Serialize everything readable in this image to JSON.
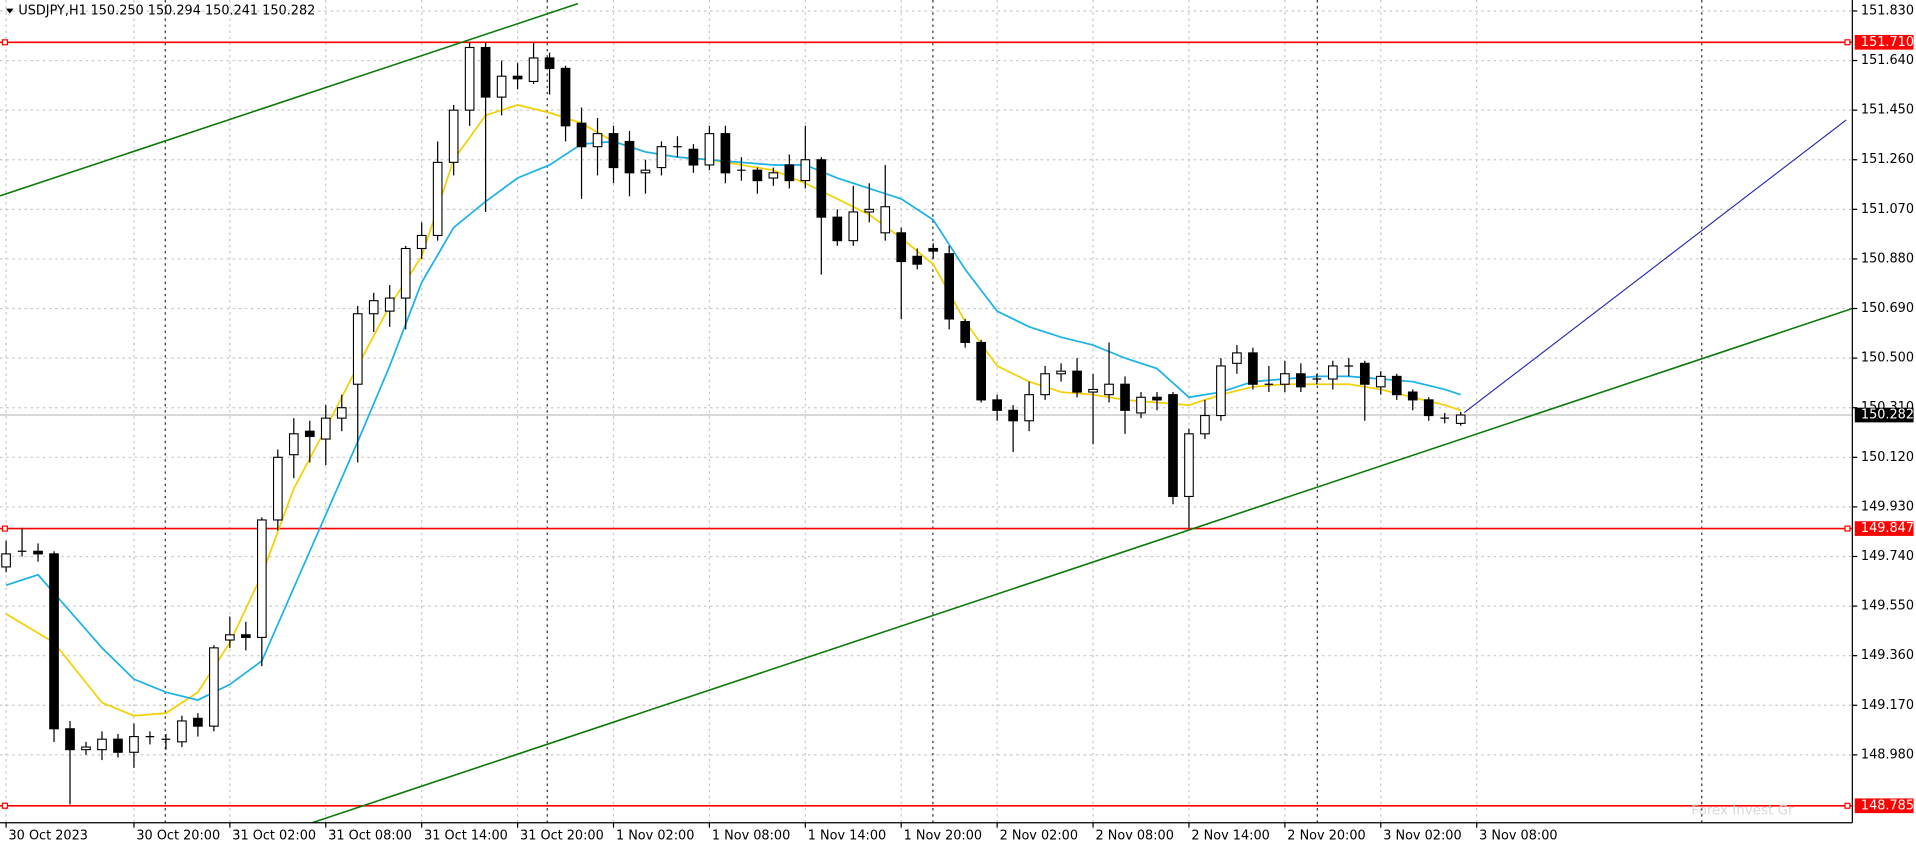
{
  "chart_data": {
    "type": "candlestick",
    "title": "USDJPY,H1",
    "ohlc_text": "150.250 150.294 150.241 150.282",
    "watermark": "Forex Invest Gr",
    "open": [
      149.7,
      149.76,
      149.76,
      149.75,
      149.08,
      149.0,
      149.0,
      149.04,
      148.99,
      149.05,
      149.04,
      149.03,
      149.12,
      149.09,
      149.42,
      149.44,
      149.43,
      149.88,
      150.13,
      150.22,
      150.19,
      150.27,
      150.4,
      150.67,
      150.68,
      150.73,
      150.92,
      150.97,
      151.25,
      151.45,
      151.69,
      151.5,
      151.58,
      151.56,
      151.65,
      151.61,
      151.4,
      151.31,
      151.36,
      151.33,
      151.21,
      151.23,
      151.31,
      151.3,
      151.24,
      151.36,
      151.22,
      151.22,
      151.19,
      151.24,
      151.18,
      151.26,
      151.04,
      150.95,
      151.06,
      150.98,
      150.98,
      150.89,
      150.92,
      150.9,
      150.64,
      150.56,
      150.34,
      150.3,
      150.26,
      150.36,
      150.44,
      150.45,
      150.37,
      150.36,
      150.4,
      150.29,
      150.35,
      150.36,
      149.97,
      150.21,
      150.28,
      150.48,
      150.52,
      150.4,
      150.4,
      150.44,
      150.42,
      150.42,
      150.47,
      150.48,
      150.39,
      150.43,
      150.37,
      150.34,
      150.27,
      150.25
    ],
    "high": [
      149.8,
      149.85,
      149.79,
      149.76,
      149.11,
      149.03,
      149.07,
      149.06,
      149.1,
      149.07,
      149.06,
      149.13,
      149.14,
      149.4,
      149.51,
      149.49,
      149.89,
      150.15,
      150.27,
      150.26,
      150.32,
      150.36,
      150.7,
      150.75,
      150.78,
      150.93,
      151.02,
      151.33,
      151.47,
      151.71,
      151.71,
      151.64,
      151.63,
      151.71,
      151.67,
      151.62,
      151.46,
      151.42,
      151.39,
      151.37,
      151.26,
      151.33,
      151.35,
      151.32,
      151.39,
      151.39,
      151.27,
      151.23,
      151.23,
      151.28,
      151.39,
      151.27,
      151.07,
      151.16,
      151.17,
      151.24,
      151.0,
      150.92,
      150.94,
      150.93,
      150.65,
      150.57,
      150.36,
      150.32,
      150.41,
      150.47,
      150.48,
      150.5,
      150.44,
      150.56,
      150.43,
      150.37,
      150.37,
      150.37,
      150.23,
      150.34,
      150.5,
      150.55,
      150.54,
      150.47,
      150.49,
      150.48,
      150.44,
      150.49,
      150.5,
      150.49,
      150.45,
      150.44,
      150.38,
      150.35,
      150.29,
      150.294
    ],
    "low": [
      149.68,
      149.74,
      149.72,
      149.03,
      148.79,
      148.98,
      148.96,
      148.97,
      148.93,
      149.02,
      149.0,
      149.01,
      149.05,
      149.07,
      149.39,
      149.38,
      149.32,
      149.84,
      150.04,
      150.1,
      150.09,
      150.22,
      150.1,
      150.6,
      150.62,
      150.61,
      150.88,
      150.95,
      151.2,
      151.39,
      151.06,
      151.43,
      151.53,
      151.55,
      151.51,
      151.33,
      151.11,
      151.2,
      151.17,
      151.12,
      151.13,
      151.2,
      151.27,
      151.21,
      151.22,
      151.17,
      151.18,
      151.13,
      151.16,
      151.15,
      151.15,
      150.82,
      150.93,
      150.93,
      151.02,
      150.95,
      150.65,
      150.84,
      150.88,
      150.61,
      150.54,
      150.33,
      150.26,
      150.14,
      150.22,
      150.34,
      150.41,
      150.35,
      150.17,
      150.33,
      150.21,
      150.27,
      150.3,
      149.94,
      149.85,
      150.19,
      150.26,
      150.44,
      150.38,
      150.37,
      150.37,
      150.37,
      150.4,
      150.38,
      150.43,
      150.26,
      150.36,
      150.34,
      150.3,
      150.26,
      150.25,
      150.241
    ],
    "close": [
      149.75,
      149.76,
      149.75,
      149.08,
      149.0,
      149.01,
      149.04,
      148.99,
      149.05,
      149.05,
      149.04,
      149.11,
      149.09,
      149.39,
      149.44,
      149.43,
      149.88,
      150.12,
      150.21,
      150.2,
      150.27,
      150.31,
      150.67,
      150.72,
      150.73,
      150.92,
      150.97,
      151.25,
      151.45,
      151.69,
      151.5,
      151.58,
      151.57,
      151.65,
      151.61,
      151.39,
      151.31,
      151.36,
      151.23,
      151.21,
      151.22,
      151.31,
      151.31,
      151.24,
      151.36,
      151.21,
      151.22,
      151.18,
      151.21,
      151.18,
      151.26,
      151.04,
      150.95,
      151.06,
      151.07,
      151.08,
      150.87,
      150.86,
      150.91,
      150.65,
      150.56,
      150.34,
      150.3,
      150.26,
      150.36,
      150.44,
      150.45,
      150.37,
      150.38,
      150.4,
      150.3,
      150.35,
      150.34,
      149.97,
      150.21,
      150.28,
      150.47,
      150.52,
      150.4,
      150.4,
      150.44,
      150.39,
      150.42,
      150.47,
      150.47,
      150.4,
      150.43,
      150.36,
      150.34,
      150.28,
      150.27,
      150.282
    ],
    "lines": [
      {
        "color": "#f5d000",
        "x": [
          0,
          3,
          6,
          8,
          10,
          12,
          14,
          16,
          18,
          20,
          22,
          24,
          26,
          28,
          30,
          32,
          34,
          36,
          38,
          40,
          42,
          44,
          46,
          48,
          50,
          52,
          54,
          56,
          58,
          60,
          62,
          64,
          66,
          68,
          70,
          72,
          74,
          76,
          78,
          80,
          82,
          84,
          86,
          88,
          90,
          91
        ],
        "values": [
          149.52,
          149.41,
          149.18,
          149.13,
          149.14,
          149.22,
          149.41,
          149.67,
          150.0,
          150.23,
          150.47,
          150.7,
          150.89,
          151.26,
          151.43,
          151.47,
          151.44,
          151.4,
          151.33,
          151.29,
          151.27,
          151.26,
          151.24,
          151.22,
          151.17,
          151.11,
          151.05,
          150.96,
          150.86,
          150.64,
          150.47,
          150.41,
          150.37,
          150.36,
          150.34,
          150.33,
          150.32,
          150.36,
          150.39,
          150.4,
          150.4,
          150.4,
          150.38,
          150.35,
          150.32,
          150.3
        ]
      },
      {
        "color": "#1ab2e8",
        "x": [
          0,
          2,
          4,
          6,
          8,
          10,
          12,
          14,
          16,
          18,
          20,
          22,
          24,
          26,
          28,
          30,
          32,
          34,
          36,
          38,
          40,
          42,
          44,
          46,
          48,
          50,
          52,
          54,
          56,
          58,
          60,
          62,
          64,
          66,
          68,
          70,
          72,
          74,
          76,
          78,
          80,
          82,
          84,
          86,
          88,
          90,
          91
        ],
        "values": [
          149.63,
          149.67,
          149.53,
          149.39,
          149.27,
          149.22,
          149.19,
          149.25,
          149.34,
          149.62,
          149.9,
          150.18,
          150.47,
          150.79,
          151.0,
          151.1,
          151.19,
          151.24,
          151.32,
          151.33,
          151.29,
          151.27,
          151.26,
          151.25,
          151.24,
          151.24,
          151.19,
          151.15,
          151.11,
          151.03,
          150.84,
          150.68,
          150.62,
          150.58,
          150.55,
          150.5,
          150.46,
          150.35,
          150.37,
          150.41,
          150.42,
          150.43,
          150.43,
          150.42,
          150.41,
          150.38,
          150.36
        ]
      }
    ],
    "hlines": [
      {
        "value": 151.71,
        "label": "151.710"
      },
      {
        "value": 149.847,
        "label": "149.847"
      },
      {
        "value": 148.785,
        "label": "148.785"
      }
    ],
    "hline_color": "#ff0000",
    "xlim": [
      -0.38,
      115.5
    ],
    "ylim": [
      148.72,
      151.872
    ],
    "yticks": [
      {
        "value": 151.83,
        "label": "151.830"
      },
      {
        "value": 151.64,
        "label": "151.640"
      },
      {
        "value": 151.45,
        "label": "151.450"
      },
      {
        "value": 151.26,
        "label": "151.260"
      },
      {
        "value": 151.07,
        "label": "151.070"
      },
      {
        "value": 150.88,
        "label": "150.880"
      },
      {
        "value": 150.69,
        "label": "150.690"
      },
      {
        "value": 150.5,
        "label": "150.500"
      },
      {
        "value": 150.31,
        "label": "150.310"
      },
      {
        "value": 150.12,
        "label": "150.120"
      },
      {
        "value": 149.93,
        "label": "149.930"
      },
      {
        "value": 149.74,
        "label": "149.740"
      },
      {
        "value": 149.55,
        "label": "149.550"
      },
      {
        "value": 149.36,
        "label": "149.360"
      },
      {
        "value": 149.17,
        "label": "149.170"
      },
      {
        "value": 148.98,
        "label": "148.980"
      }
    ],
    "xticks": [
      {
        "value": 0,
        "label": "30 Oct 2023"
      },
      {
        "value": 8,
        "label": "30 Oct 20:00"
      },
      {
        "value": 14,
        "label": "31 Oct 02:00"
      },
      {
        "value": 20,
        "label": "31 Oct 08:00"
      },
      {
        "value": 26,
        "label": "31 Oct 14:00"
      },
      {
        "value": 32,
        "label": "31 Oct 20:00"
      },
      {
        "value": 38,
        "label": "1 Nov 02:00"
      },
      {
        "value": 44,
        "label": "1 Nov 08:00"
      },
      {
        "value": 50,
        "label": "1 Nov 14:00"
      },
      {
        "value": 56,
        "label": "1 Nov 20:00"
      },
      {
        "value": 62,
        "label": "2 Nov 02:00"
      },
      {
        "value": 68,
        "label": "2 Nov 08:00"
      },
      {
        "value": 74,
        "label": "2 Nov 14:00"
      },
      {
        "value": 80,
        "label": "2 Nov 20:00"
      },
      {
        "value": 86,
        "label": "3 Nov 02:00"
      },
      {
        "value": 92,
        "label": "3 Nov 08:00"
      }
    ],
    "grid": true
  }
}
